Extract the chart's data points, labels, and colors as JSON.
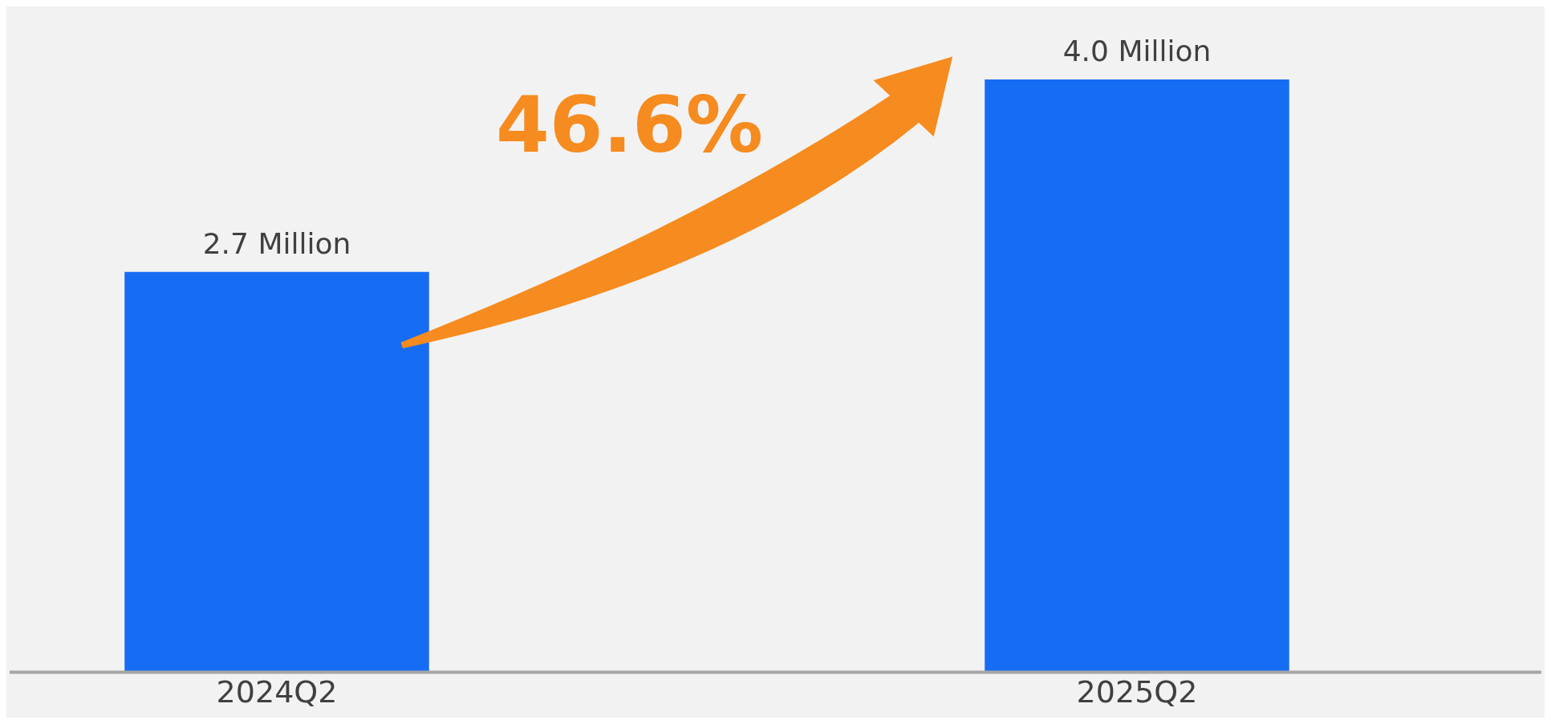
{
  "chart_data": {
    "type": "bar",
    "categories": [
      "2024Q2",
      "2025Q2"
    ],
    "values": [
      2.7,
      4.0
    ],
    "value_labels": [
      "2.7 Million",
      "4.0 Million"
    ],
    "color": "#176cf4",
    "annotations": [
      "46.6%"
    ],
    "grid": false,
    "legend": false
  }
}
